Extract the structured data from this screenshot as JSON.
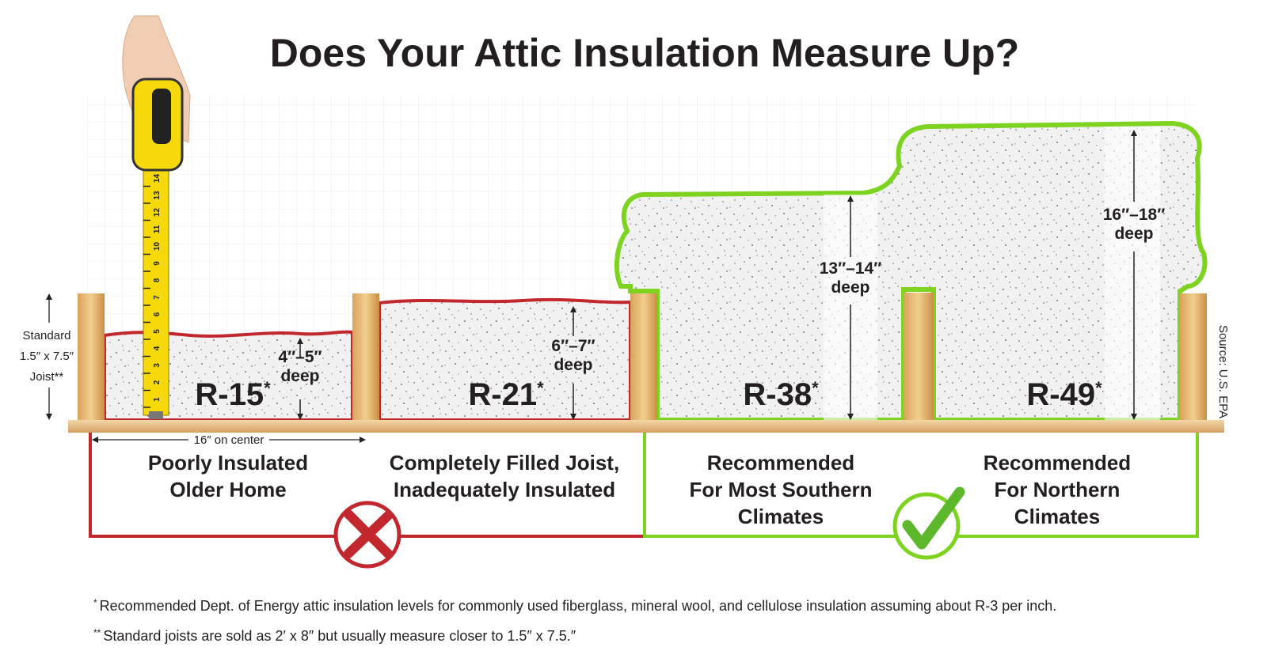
{
  "title": "Does Your Attic Insulation Measure Up?",
  "joist_note": [
    "Standard",
    "1.5″ x 7.5″",
    "Joist**"
  ],
  "spacing": "16″ on center",
  "tape_numbers": [
    1,
    2,
    3,
    4,
    5,
    6,
    7,
    8,
    9,
    10,
    11,
    12,
    13,
    14
  ],
  "panels": [
    {
      "rating": "R-15",
      "mark": "*",
      "depth": [
        "4″–5″",
        "deep"
      ],
      "caption": [
        "Poorly Insulated",
        "Older Home"
      ]
    },
    {
      "rating": "R-21",
      "mark": "*",
      "depth": [
        "6″–7″",
        "deep"
      ],
      "caption": [
        "Completely Filled Joist,",
        "Inadequately Insulated"
      ]
    },
    {
      "rating": "R-38",
      "mark": "*",
      "depth": [
        "13″–14″",
        "deep"
      ],
      "caption": [
        "Recommended",
        "For Most Southern",
        "Climates"
      ]
    },
    {
      "rating": "R-49",
      "mark": "*",
      "depth": [
        "16″–18″",
        "deep"
      ],
      "caption": [
        "Recommended",
        "For Northern",
        "Climates"
      ]
    }
  ],
  "source": "Source: U.S. EPA",
  "footnotes": [
    {
      "mark": "*",
      "text": "Recommended Dept. of Energy attic insulation levels for commonly used fiberglass, mineral wool, and cellulose insulation assuming about R-3 per inch."
    },
    {
      "mark": "**",
      "text": "Standard joists are sold as 2′ x 8″ but usually measure closer to 1.5″ x 7.5.″"
    }
  ]
}
